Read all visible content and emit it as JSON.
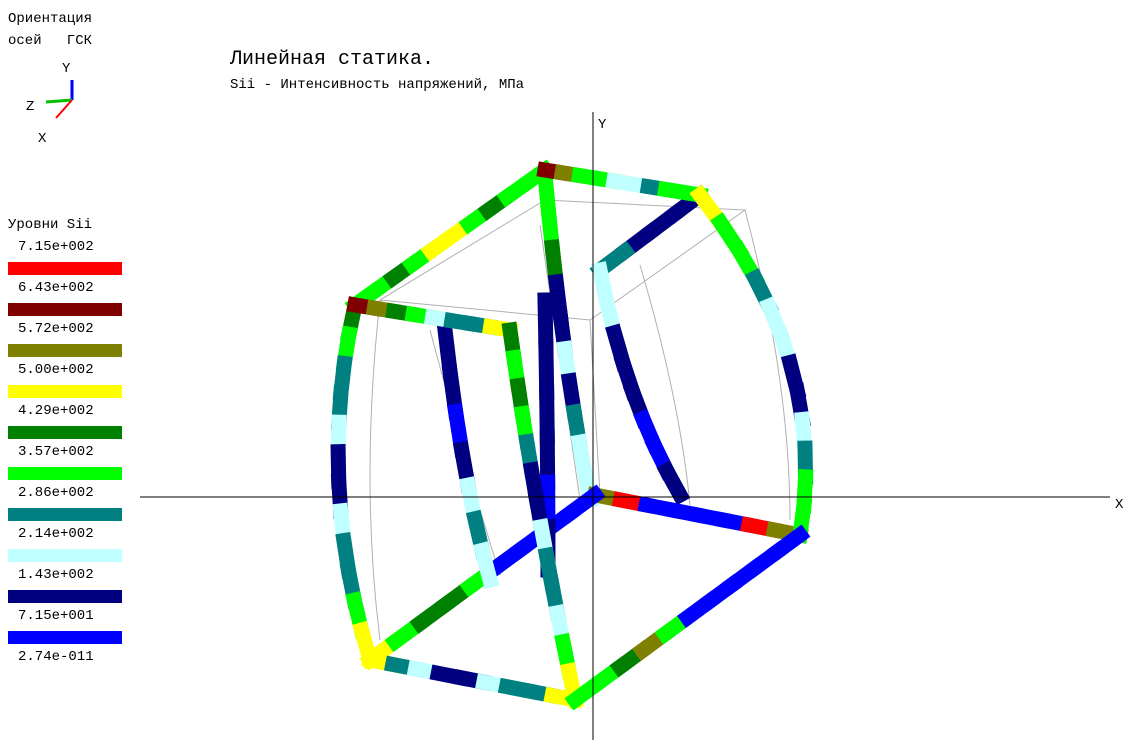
{
  "orientation": {
    "title": "Ориентация",
    "subtitle": "осей   ГСК",
    "axes": [
      "Y",
      "Z",
      "X"
    ]
  },
  "header": {
    "title": "Линейная статика.",
    "subtitle": "Sii - Интенсивность напряжений, МПа"
  },
  "axes": {
    "y": "Y",
    "x": "X"
  },
  "legend": {
    "title": "Уровни Sii",
    "levels": [
      "7.15e+002",
      "6.43e+002",
      "5.72e+002",
      "5.00e+002",
      "4.29e+002",
      "3.57e+002",
      "2.86e+002",
      "2.14e+002",
      "1.43e+002",
      "7.15e+001",
      "2.74e-011"
    ],
    "colors": [
      "#ff0000",
      "#800000",
      "#808000",
      "#ffff00",
      "#008000",
      "#00ff00",
      "#008080",
      "#c0ffff",
      "#000080",
      "#0000ff"
    ]
  }
}
